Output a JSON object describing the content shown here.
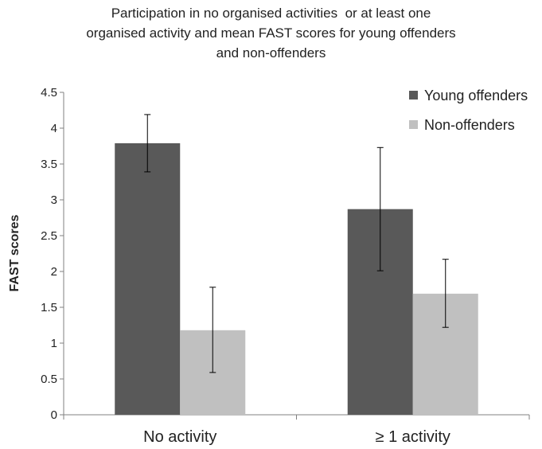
{
  "chart_data": {
    "type": "bar",
    "title_lines": [
      "Participation in no organised activities  or at least one",
      "organised activity and mean FAST scores for young offenders",
      "and non-offenders"
    ],
    "ylabel": "FAST scores",
    "xlabel": "",
    "ylim": [
      0,
      4.5
    ],
    "yticks": [
      "0",
      "0.5",
      "1",
      "1.5",
      "2",
      "2.5",
      "3",
      "3.5",
      "4",
      "4.5"
    ],
    "categories": [
      "No activity",
      "≥ 1  activity"
    ],
    "series": [
      {
        "name": "Young offenders",
        "color": "#595959",
        "values": [
          3.79,
          2.87
        ],
        "error_low": [
          3.39,
          2.01
        ],
        "error_high": [
          4.19,
          3.73
        ]
      },
      {
        "name": "Non-offenders",
        "color": "#c0c0c0",
        "values": [
          1.18,
          1.69
        ],
        "error_low": [
          0.59,
          1.22
        ],
        "error_high": [
          1.78,
          2.17
        ]
      }
    ],
    "legend_position": "top-right",
    "grid": false
  }
}
